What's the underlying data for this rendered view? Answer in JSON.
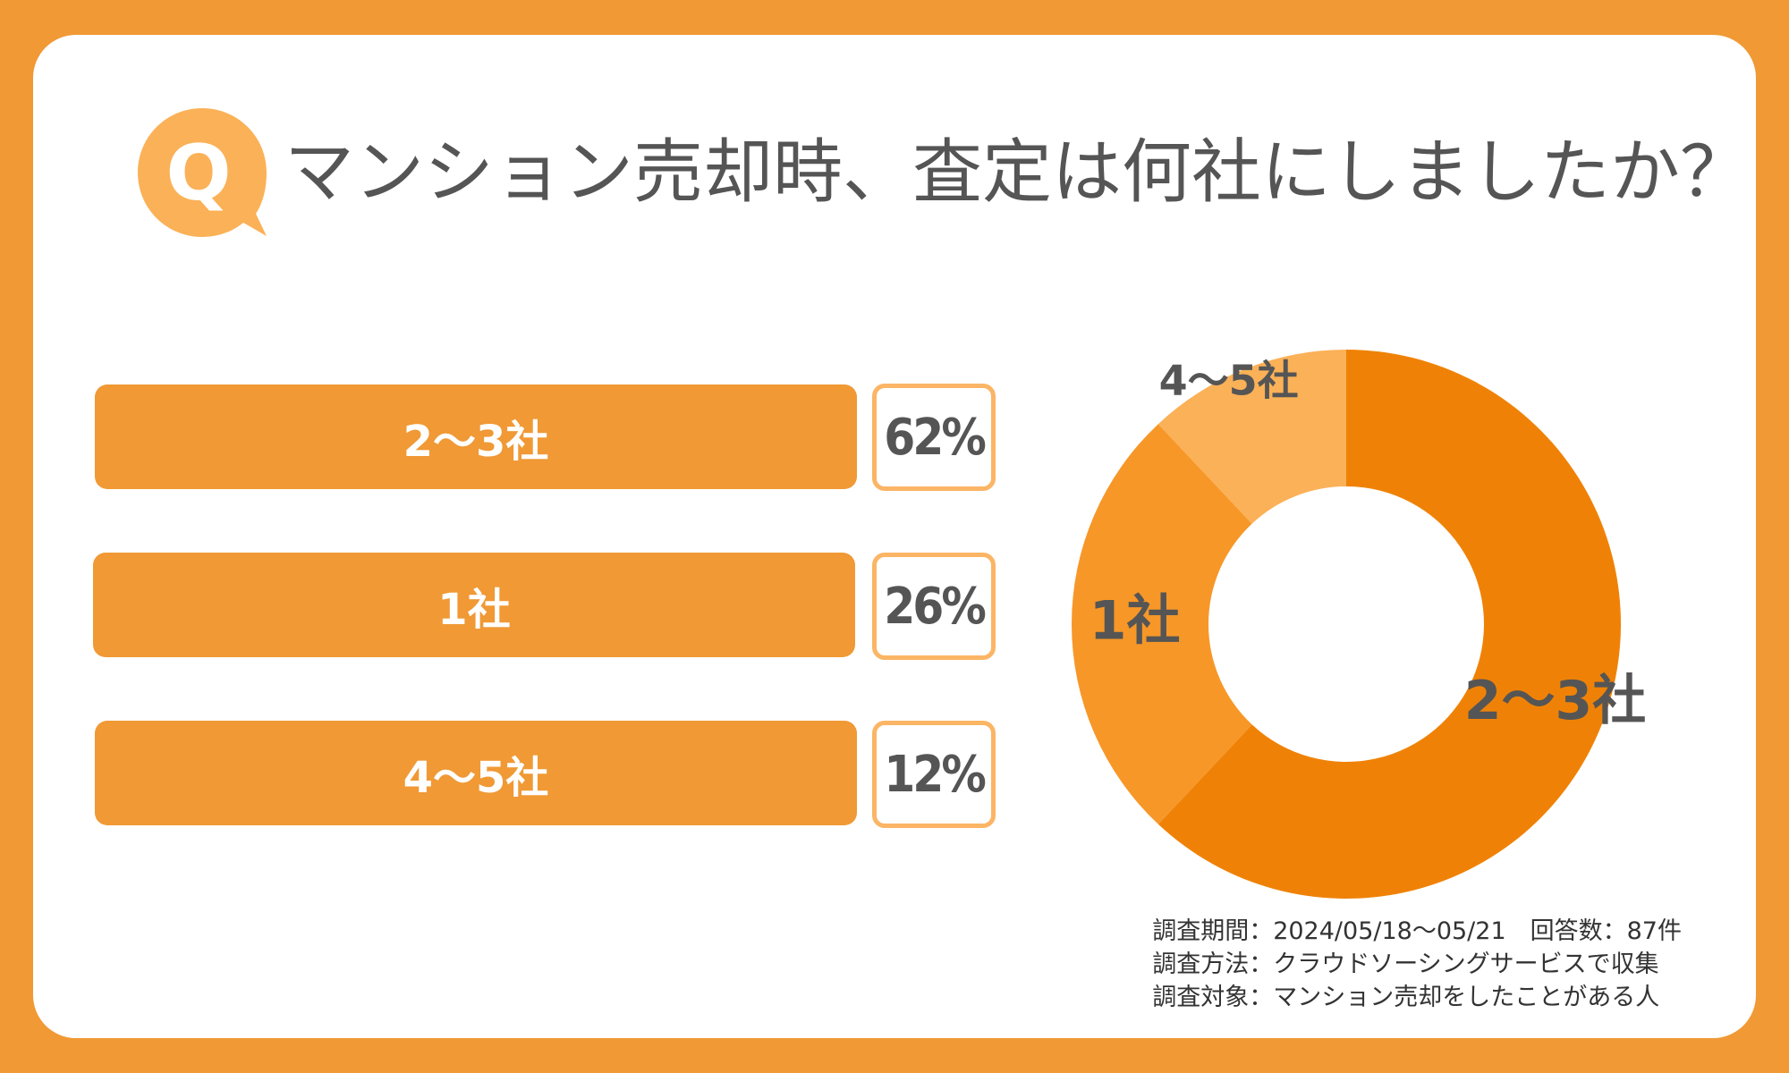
{
  "question_badge": {
    "letter": "Q"
  },
  "title": "マンション売却時、査定は何社にしましたか？",
  "bars": [
    {
      "label": "2〜3社",
      "percent_label": "62%"
    },
    {
      "label": "1社",
      "percent_label": "26%"
    },
    {
      "label": "4〜5社",
      "percent_label": "12%"
    }
  ],
  "survey": {
    "period": "調査期間：2024/05/18〜05/21　回答数：87件",
    "method": "調査方法：クラウドソーシングサービスで収集",
    "target": "調査対象：マンション売却をしたことがある人"
  },
  "colors": {
    "background": "#F09935",
    "bar": "#F09935",
    "slice_2_3": "#EF8206",
    "slice_1": "#F79728",
    "slice_4_5": "#FBB157",
    "text": "#555555"
  },
  "chart_data": {
    "type": "pie",
    "variant": "donut",
    "slices": [
      {
        "label": "2〜3社",
        "value": 62,
        "color": "#EF8206"
      },
      {
        "label": "1社",
        "value": 26,
        "color": "#F79728"
      },
      {
        "label": "4〜5社",
        "value": 12,
        "color": "#FBB157"
      }
    ],
    "start": "top",
    "direction": "clockwise",
    "legend": "none"
  }
}
